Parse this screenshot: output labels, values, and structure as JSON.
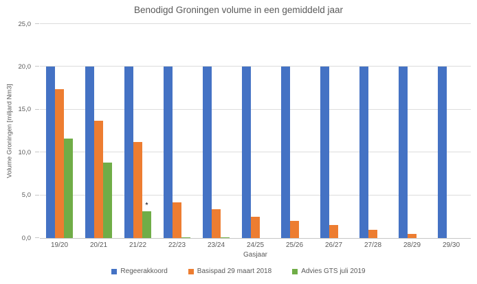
{
  "chart_data": {
    "type": "bar",
    "title": "Benodigd Groningen volume in een gemiddeld jaar",
    "xlabel": "Gasjaar",
    "ylabel": "Volume Groningen [miljard Nm3]",
    "ylim": [
      0,
      25
    ],
    "y_ticks": [
      {
        "label": "0,0",
        "value": 0
      },
      {
        "label": "5,0",
        "value": 5
      },
      {
        "label": "10,0",
        "value": 10
      },
      {
        "label": "15,0",
        "value": 15
      },
      {
        "label": "20,0",
        "value": 20
      },
      {
        "label": "25,0",
        "value": 25
      }
    ],
    "categories": [
      "19/20",
      "20/21",
      "21/22",
      "22/23",
      "23/24",
      "24/25",
      "25/26",
      "26/27",
      "27/28",
      "28/29",
      "29/30"
    ],
    "series": [
      {
        "name": "Regeerakkoord",
        "color": "#4472C4",
        "values": [
          20.0,
          20.0,
          20.0,
          20.0,
          20.0,
          20.0,
          20.0,
          20.0,
          20.0,
          20.0,
          20.0
        ]
      },
      {
        "name": "Basispad 29 maart 2018",
        "color": "#ED7D31",
        "values": [
          17.4,
          13.7,
          11.2,
          4.2,
          3.4,
          2.5,
          2.0,
          1.5,
          1.0,
          0.5,
          0
        ]
      },
      {
        "name": "Advies GTS juli 2019",
        "color": "#70AD47",
        "values": [
          11.6,
          8.8,
          3.1,
          0.1,
          0.1,
          0,
          0,
          0,
          0,
          0,
          0
        ]
      }
    ],
    "annotations": [
      {
        "text": "*",
        "category_index": 2,
        "series_index": 2
      }
    ],
    "grid": true,
    "legend_position": "bottom"
  },
  "colors": {
    "gridline": "#dcdcdc",
    "axis": "#c6c6c6",
    "text": "#595959"
  }
}
